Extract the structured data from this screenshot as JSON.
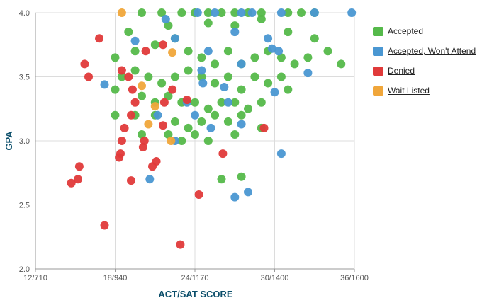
{
  "chart_data": {
    "type": "scatter",
    "xlabel": "ACT/SAT SCORE",
    "ylabel": "GPA",
    "x_ticks": [
      {
        "act": 12,
        "label": "12/710"
      },
      {
        "act": 18,
        "label": "18/940"
      },
      {
        "act": 24,
        "label": "24/1170"
      },
      {
        "act": 30,
        "label": "30/1400"
      },
      {
        "act": 36,
        "label": "36/1600"
      }
    ],
    "xlim": [
      12,
      36
    ],
    "ylim": [
      2.0,
      4.0
    ],
    "y_ticks": [
      "2.0",
      "2.5",
      "3.0",
      "3.5",
      "4.0"
    ],
    "grid": true,
    "legend_placement": "right",
    "series": [
      {
        "name": "Accepted",
        "color": "#55b94a",
        "points": [
          [
            20,
            4.0
          ],
          [
            21.5,
            4.0
          ],
          [
            23,
            4.0
          ],
          [
            24,
            4.0
          ],
          [
            25,
            4.0
          ],
          [
            26,
            4.0
          ],
          [
            27,
            4.0
          ],
          [
            28,
            4.0
          ],
          [
            29,
            4.0
          ],
          [
            31,
            4.0
          ],
          [
            32,
            4.0
          ],
          [
            33,
            4.0
          ],
          [
            19,
            3.85
          ],
          [
            22,
            3.9
          ],
          [
            25,
            3.92
          ],
          [
            27,
            3.9
          ],
          [
            29,
            3.95
          ],
          [
            31,
            3.85
          ],
          [
            33,
            3.8
          ],
          [
            34,
            3.7
          ],
          [
            35,
            3.6
          ],
          [
            18,
            3.65
          ],
          [
            19.5,
            3.7
          ],
          [
            21,
            3.75
          ],
          [
            22.5,
            3.8
          ],
          [
            23.5,
            3.7
          ],
          [
            24.5,
            3.65
          ],
          [
            25.5,
            3.6
          ],
          [
            26.5,
            3.7
          ],
          [
            27.5,
            3.6
          ],
          [
            28.5,
            3.65
          ],
          [
            29.5,
            3.7
          ],
          [
            30.5,
            3.65
          ],
          [
            31.5,
            3.6
          ],
          [
            32.5,
            3.65
          ],
          [
            18.5,
            3.5
          ],
          [
            19.5,
            3.55
          ],
          [
            20.5,
            3.5
          ],
          [
            21.5,
            3.45
          ],
          [
            22.5,
            3.5
          ],
          [
            23.5,
            3.55
          ],
          [
            24.5,
            3.5
          ],
          [
            25.5,
            3.45
          ],
          [
            26.5,
            3.5
          ],
          [
            27.5,
            3.4
          ],
          [
            28.5,
            3.5
          ],
          [
            29.5,
            3.45
          ],
          [
            30.5,
            3.5
          ],
          [
            31,
            3.4
          ],
          [
            18,
            3.4
          ],
          [
            20,
            3.35
          ],
          [
            21,
            3.3
          ],
          [
            22,
            3.35
          ],
          [
            23,
            3.3
          ],
          [
            24,
            3.3
          ],
          [
            25,
            3.25
          ],
          [
            26,
            3.3
          ],
          [
            27,
            3.3
          ],
          [
            28,
            3.25
          ],
          [
            29,
            3.3
          ],
          [
            18,
            3.2
          ],
          [
            19.5,
            3.2
          ],
          [
            21,
            3.2
          ],
          [
            22.5,
            3.15
          ],
          [
            23.5,
            3.1
          ],
          [
            24.5,
            3.15
          ],
          [
            25.5,
            3.2
          ],
          [
            26.5,
            3.15
          ],
          [
            27.5,
            3.2
          ],
          [
            29,
            3.1
          ],
          [
            20,
            3.05
          ],
          [
            22,
            3.05
          ],
          [
            23,
            3.0
          ],
          [
            24,
            3.05
          ],
          [
            25,
            3.0
          ],
          [
            27,
            3.05
          ],
          [
            26,
            2.7
          ],
          [
            27.5,
            2.72
          ]
        ]
      },
      {
        "name": "Accepted, Won't Attend",
        "color": "#4a97d2",
        "points": [
          [
            24.2,
            4.0
          ],
          [
            25.5,
            4.0
          ],
          [
            27.5,
            4.0
          ],
          [
            28.3,
            4.0
          ],
          [
            30.5,
            4.0
          ],
          [
            33,
            4.0
          ],
          [
            35.8,
            4.0
          ],
          [
            21.8,
            3.95
          ],
          [
            27,
            3.85
          ],
          [
            29.5,
            3.8
          ],
          [
            22.5,
            3.8
          ],
          [
            19.5,
            3.78
          ],
          [
            25,
            3.7
          ],
          [
            29.8,
            3.72
          ],
          [
            30.3,
            3.7
          ],
          [
            24.5,
            3.55
          ],
          [
            27.5,
            3.6
          ],
          [
            32.5,
            3.53
          ],
          [
            24.6,
            3.45
          ],
          [
            26.2,
            3.42
          ],
          [
            30,
            3.38
          ],
          [
            17.2,
            3.44
          ],
          [
            23.4,
            3.3
          ],
          [
            26.5,
            3.3
          ],
          [
            21.2,
            3.2
          ],
          [
            24,
            3.2
          ],
          [
            27.5,
            3.13
          ],
          [
            22.5,
            3.0
          ],
          [
            25.2,
            3.1
          ],
          [
            30.5,
            2.9
          ],
          [
            20.6,
            2.7
          ],
          [
            28,
            2.6
          ],
          [
            27,
            2.56
          ]
        ]
      },
      {
        "name": "Denied",
        "color": "#e03a3a",
        "points": [
          [
            16.8,
            3.8
          ],
          [
            15.7,
            3.6
          ],
          [
            16,
            3.5
          ],
          [
            18.5,
            3.55
          ],
          [
            19,
            3.5
          ],
          [
            20.3,
            3.7
          ],
          [
            19.3,
            3.4
          ],
          [
            19.5,
            3.3
          ],
          [
            19.2,
            3.2
          ],
          [
            18.7,
            3.1
          ],
          [
            18.5,
            3.0
          ],
          [
            18.4,
            2.9
          ],
          [
            18.3,
            2.87
          ],
          [
            20.2,
            3.0
          ],
          [
            20.1,
            2.95
          ],
          [
            21.1,
            2.84
          ],
          [
            20.8,
            2.8
          ],
          [
            21.6,
            3.12
          ],
          [
            21.7,
            3.3
          ],
          [
            21.6,
            3.75
          ],
          [
            23.4,
            3.32
          ],
          [
            22.3,
            3.4
          ],
          [
            29.2,
            3.1
          ],
          [
            26.1,
            2.9
          ],
          [
            24.3,
            2.58
          ],
          [
            15.3,
            2.8
          ],
          [
            15.2,
            2.7
          ],
          [
            14.7,
            2.67
          ],
          [
            19.2,
            2.69
          ],
          [
            17.2,
            2.34
          ],
          [
            22.9,
            2.19
          ]
        ]
      },
      {
        "name": "Wait Listed",
        "color": "#f0a63a",
        "points": [
          [
            18.5,
            4.0
          ],
          [
            22.3,
            3.69
          ],
          [
            20,
            3.43
          ],
          [
            21,
            3.27
          ],
          [
            20.5,
            3.13
          ],
          [
            22.2,
            3.0
          ]
        ]
      }
    ]
  }
}
